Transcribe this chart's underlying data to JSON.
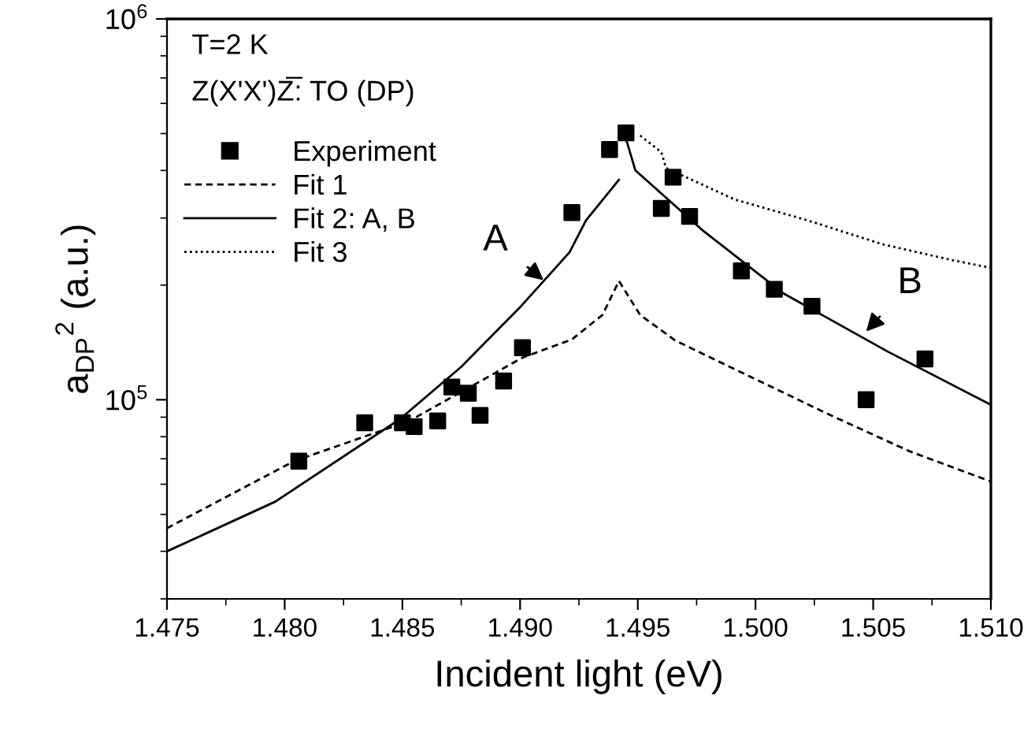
{
  "chart_data": {
    "type": "scatter",
    "xlabel": "Incident light (eV)",
    "ylabel": "a$_{DP}$$^{2}$ (a.u.)",
    "log": "y",
    "xlim": [
      1.475,
      1.51
    ],
    "ylim": [
      30000,
      1000000
    ],
    "xticks": [
      {
        "value": 1.475,
        "label": "1.475"
      },
      {
        "value": 1.48,
        "label": "1.480"
      },
      {
        "value": 1.485,
        "label": "1.485"
      },
      {
        "value": 1.49,
        "label": "1.490"
      },
      {
        "value": 1.495,
        "label": "1.495"
      },
      {
        "value": 1.5,
        "label": "1.500"
      },
      {
        "value": 1.505,
        "label": "1.505"
      },
      {
        "value": 1.51,
        "label": "1.510"
      }
    ],
    "yticks": [
      {
        "value": 100000,
        "label": "10$^{5}$"
      },
      {
        "value": 1000000,
        "label": "10$^{6}$"
      }
    ],
    "grid": false,
    "legend": "top left",
    "annotations": [
      "T=2 K",
      "Z(X'X')Z̅: TO (DP)",
      {
        "text": "A",
        "x": 1.491,
        "y": 206000
      },
      {
        "text": "B",
        "x": 1.5047,
        "y": 151000
      }
    ],
    "series": [
      {
        "name": "Experiment",
        "marker": "square",
        "color": "#000000",
        "x": [
          1.4806,
          1.4834,
          1.485,
          1.4855,
          1.4865,
          1.4871,
          1.4878,
          1.4883,
          1.4893,
          1.4901,
          1.4922,
          1.4938,
          1.4945,
          1.4965,
          1.496,
          1.4972,
          1.4994,
          1.5008,
          1.5024,
          1.5047,
          1.5072
        ],
        "values": [
          69000,
          87000,
          87000,
          85000,
          88000,
          108000,
          104000,
          91000,
          112000,
          137000,
          310000,
          454000,
          502000,
          384000,
          318000,
          303000,
          218000,
          195000,
          176000,
          100000,
          128000
        ]
      },
      {
        "name": "Fit 1",
        "type": "line",
        "line_style": "dashed",
        "color": "#000000",
        "x": [
          1.475,
          1.4804,
          1.4853,
          1.4901,
          1.4922,
          1.4935,
          1.4942,
          1.4951,
          1.4966,
          1.4999,
          1.5032,
          1.5066,
          1.51
        ],
        "values": [
          46000,
          69000,
          88000,
          129000,
          144000,
          167000,
          205000,
          167000,
          143000,
          114000,
          91000,
          73000,
          61000
        ]
      },
      {
        "name": "Fit 2: A, B",
        "type": "line",
        "line_style": "solid",
        "color": "#000000",
        "x": [
          1.475,
          1.4796,
          1.4849,
          1.4875,
          1.49,
          1.4921,
          1.4928,
          1.4942,
          1.4943,
          1.4945,
          1.4949,
          1.4978,
          1.5012,
          1.5056,
          1.51
        ],
        "values": [
          40000,
          54000,
          89000,
          122000,
          175000,
          244000,
          296000,
          378000,
          null,
          484000,
          400000,
          277000,
          190000,
          134000,
          97000
        ]
      },
      {
        "name": "Fit 3",
        "type": "line",
        "line_style": "dotted",
        "color": "#000000",
        "x": [
          1.4951,
          1.496,
          1.4962,
          1.4991,
          1.5022,
          1.5054,
          1.5083,
          1.51
        ],
        "values": [
          494000,
          447000,
          406000,
          336000,
          296000,
          256000,
          233000,
          222000
        ]
      }
    ]
  }
}
